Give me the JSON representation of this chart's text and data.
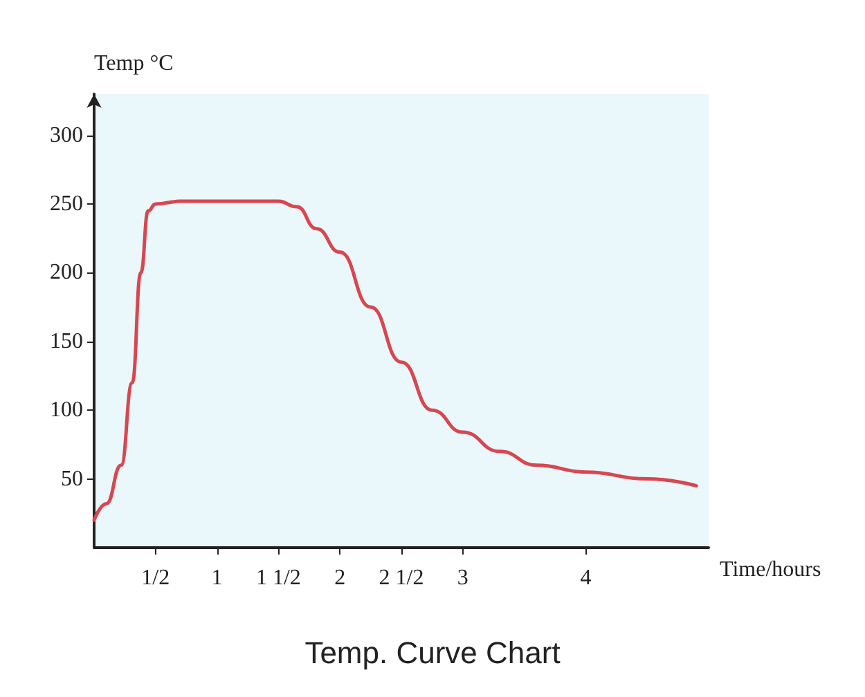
{
  "chart_data": {
    "type": "line",
    "title": "Temp. Curve Chart",
    "xlabel": "Time/hours",
    "ylabel": "Temp °C",
    "x": [
      0,
      0.1,
      0.22,
      0.31,
      0.38,
      0.44,
      0.5,
      0.7,
      1,
      1.5,
      1.65,
      1.81,
      2,
      2.25,
      2.5,
      2.75,
      3,
      3.3,
      3.6,
      4,
      4.5,
      4.9
    ],
    "series": [
      {
        "color": "#d9464f",
        "values": [
          20,
          32,
          60,
          120,
          200,
          245,
          250,
          252,
          252,
          252,
          248,
          232,
          215,
          175,
          135,
          100,
          84,
          70,
          60,
          55,
          50,
          45
        ]
      }
    ],
    "xlim": [
      0,
      5
    ],
    "xticks": [
      {
        "value": 0.5,
        "label": "1/2"
      },
      {
        "value": 1,
        "label": "1"
      },
      {
        "value": 1.5,
        "label": "1 1/2"
      },
      {
        "value": 2,
        "label": "2"
      },
      {
        "value": 2.5,
        "label": "2 1/2"
      },
      {
        "value": 3,
        "label": "3"
      },
      {
        "value": 4,
        "label": "4"
      }
    ],
    "ylim": [
      0,
      330
    ],
    "yticks": [
      50,
      100,
      150,
      200,
      250,
      300
    ],
    "grid": false,
    "marker": "none",
    "line_style": "solid"
  }
}
